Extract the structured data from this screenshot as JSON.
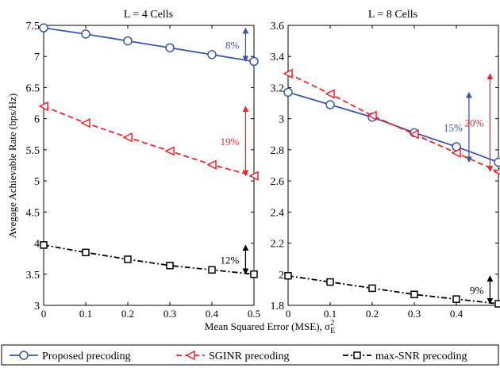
{
  "xlabel": "Mean Squared Error (MSE), σ",
  "xlabel_sub": "E",
  "xlabel_sup": "2",
  "ylabel": "Avegage Achievable Rate (bps/Hz)",
  "legend": [
    {
      "label": "Proposed precoding",
      "color": "#3a56a6",
      "marker": "circle",
      "dash": "solid"
    },
    {
      "label": "SGINR precoding",
      "color": "#e8262d",
      "marker": "triangle-left",
      "dash": "dashed"
    },
    {
      "label": "max-SNR precoding",
      "color": "#000000",
      "marker": "square",
      "dash": "dashdot"
    }
  ],
  "chart_data": [
    {
      "type": "line",
      "title": "L = 4 Cells",
      "x": [
        0,
        0.1,
        0.2,
        0.3,
        0.4,
        0.5
      ],
      "xticks": [
        "0",
        "0.1",
        "0.2",
        "0.3",
        "0.4",
        "0.5"
      ],
      "xlim": [
        0,
        0.5
      ],
      "ylim": [
        3,
        7.5
      ],
      "yticks": [
        "3",
        "3.5",
        "4",
        "4.5",
        "5",
        "5.5",
        "6",
        "6.5",
        "7",
        "7.5"
      ],
      "grid": false,
      "series": [
        {
          "name": "Proposed precoding",
          "values": [
            7.46,
            7.36,
            7.25,
            7.14,
            7.03,
            6.92
          ]
        },
        {
          "name": "SGINR precoding",
          "values": [
            6.2,
            5.93,
            5.7,
            5.48,
            5.26,
            5.08
          ]
        },
        {
          "name": "max-SNR precoding",
          "values": [
            3.97,
            3.85,
            3.74,
            3.64,
            3.57,
            3.5
          ]
        }
      ],
      "annotations": [
        {
          "text": "8%",
          "color": "#3a56a6",
          "x": 0.48,
          "y_from": 7.46,
          "y_to": 6.92
        },
        {
          "text": "19%",
          "color": "#e8262d",
          "x": 0.48,
          "y_from": 6.2,
          "y_to": 5.08
        },
        {
          "text": "12%",
          "color": "#000000",
          "x": 0.48,
          "y_from": 3.97,
          "y_to": 3.5
        }
      ]
    },
    {
      "type": "line",
      "title": "L = 8 Cells",
      "x": [
        0,
        0.1,
        0.2,
        0.3,
        0.4,
        0.5
      ],
      "xticks": [
        "0",
        "0.1",
        "0.2",
        "0.3",
        "0.4"
      ],
      "xlim": [
        0,
        0.5
      ],
      "ylim": [
        1.8,
        3.6
      ],
      "yticks": [
        "1.8",
        "2",
        "2.2",
        "2.4",
        "2.6",
        "2.8",
        "3",
        "3.2",
        "3.4",
        "3.6"
      ],
      "grid": false,
      "series": [
        {
          "name": "Proposed precoding",
          "values": [
            3.17,
            3.09,
            3.01,
            2.91,
            2.82,
            2.72
          ]
        },
        {
          "name": "SGINR precoding",
          "values": [
            3.29,
            3.16,
            3.02,
            2.9,
            2.78,
            2.66
          ]
        },
        {
          "name": "max-SNR precoding",
          "values": [
            1.99,
            1.95,
            1.91,
            1.87,
            1.84,
            1.81
          ]
        }
      ],
      "annotations": [
        {
          "text": "15%",
          "color": "#3a56a6",
          "x": 0.43,
          "y_from": 3.17,
          "y_to": 2.72
        },
        {
          "text": "20%",
          "color": "#e8262d",
          "x": 0.48,
          "y_from": 3.29,
          "y_to": 2.66
        },
        {
          "text": "9%",
          "color": "#000000",
          "x": 0.48,
          "y_from": 1.99,
          "y_to": 1.81
        }
      ]
    }
  ]
}
